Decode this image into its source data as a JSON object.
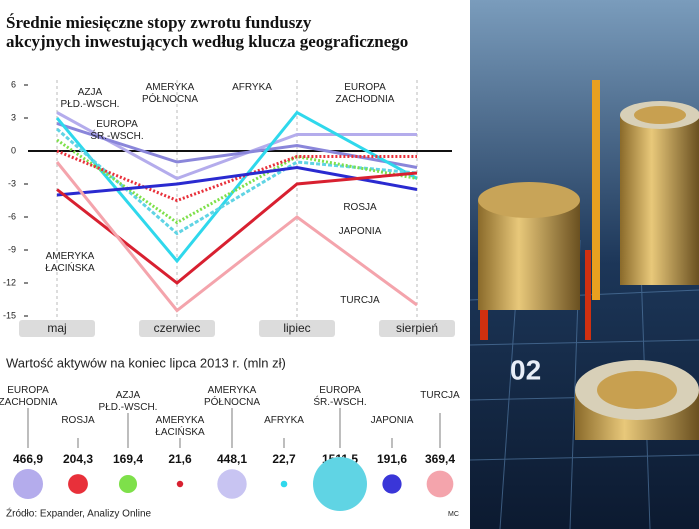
{
  "chart_data": [
    {
      "type": "line",
      "title": "Średnie miesięczne stopy zwrotu funduszy akcyjnych inwestujących według klucza geograficznego",
      "categories": [
        "maj",
        "czerwiec",
        "lipiec",
        "sierpień"
      ],
      "ylim": [
        -15,
        6
      ],
      "yticks": [
        -15,
        -12,
        -9,
        -6,
        -3,
        0,
        3,
        6
      ],
      "grid": true,
      "series": [
        {
          "name": "EUROPA ZACHODNIA",
          "color": "#b4acec",
          "values": [
            3.5,
            -2.5,
            1.5,
            1.5
          ]
        },
        {
          "name": "AMERYKA PÓŁNOCNA",
          "color": "#8a86da",
          "values": [
            2.5,
            -1,
            0.5,
            -1.5
          ]
        },
        {
          "name": "AFRYKA",
          "color": "#2fd8ec",
          "values": [
            3,
            -10,
            3.5,
            -2.5
          ]
        },
        {
          "name": "EUROPA ŚR.-WSCH.",
          "color": "#60d4e4",
          "values": [
            2,
            -7.5,
            -1,
            -2
          ]
        },
        {
          "name": "AZJA PŁD.-WSCH.",
          "color": "#7ee04a",
          "values": [
            1,
            -6.5,
            -0.5,
            -2.5
          ]
        },
        {
          "name": "ROSJA",
          "color": "#e8303a",
          "values": [
            0,
            -4.5,
            -0.5,
            -0.5
          ]
        },
        {
          "name": "JAPONIA",
          "color": "#2a2ad0",
          "values": [
            -4,
            -3,
            -1.5,
            -3.5
          ]
        },
        {
          "name": "AMERYKA ŁACIŃSKA",
          "color": "#d82030",
          "values": [
            -3.5,
            -12,
            -3,
            -2
          ]
        },
        {
          "name": "TURCJA",
          "color": "#f4a4ac",
          "values": [
            -1,
            -14.5,
            -6,
            -14
          ]
        }
      ]
    },
    {
      "type": "bubble",
      "title": "Wartość aktywów na koniec lipca 2013 r. (mln zł)",
      "categories": [
        "EUROPA ZACHODNIA",
        "ROSJA",
        "AZJA PŁD.-WSCH.",
        "AMERYKA ŁACIŃSKA",
        "AMERYKA PÓŁNOCNA",
        "AFRYKA",
        "EUROPA ŚR.-WSCH.",
        "JAPONIA",
        "TURCJA"
      ],
      "values": [
        466.9,
        204.3,
        169.4,
        21.6,
        448.1,
        22.7,
        1511.5,
        191.6,
        369.4
      ],
      "value_labels": [
        "466,9",
        "204,3",
        "169,4",
        "21,6",
        "448,1",
        "22,7",
        "1511,5",
        "191,6",
        "369,4"
      ],
      "colors": [
        "#b4acec",
        "#e8303a",
        "#7ee04a",
        "#d82030",
        "#c8c4f2",
        "#2fd8ec",
        "#60d4e4",
        "#3a36d8",
        "#f4a4ac"
      ]
    }
  ],
  "source": "Źródło: Expander, Analizy Online",
  "credit": "MC",
  "photo_text": "02"
}
